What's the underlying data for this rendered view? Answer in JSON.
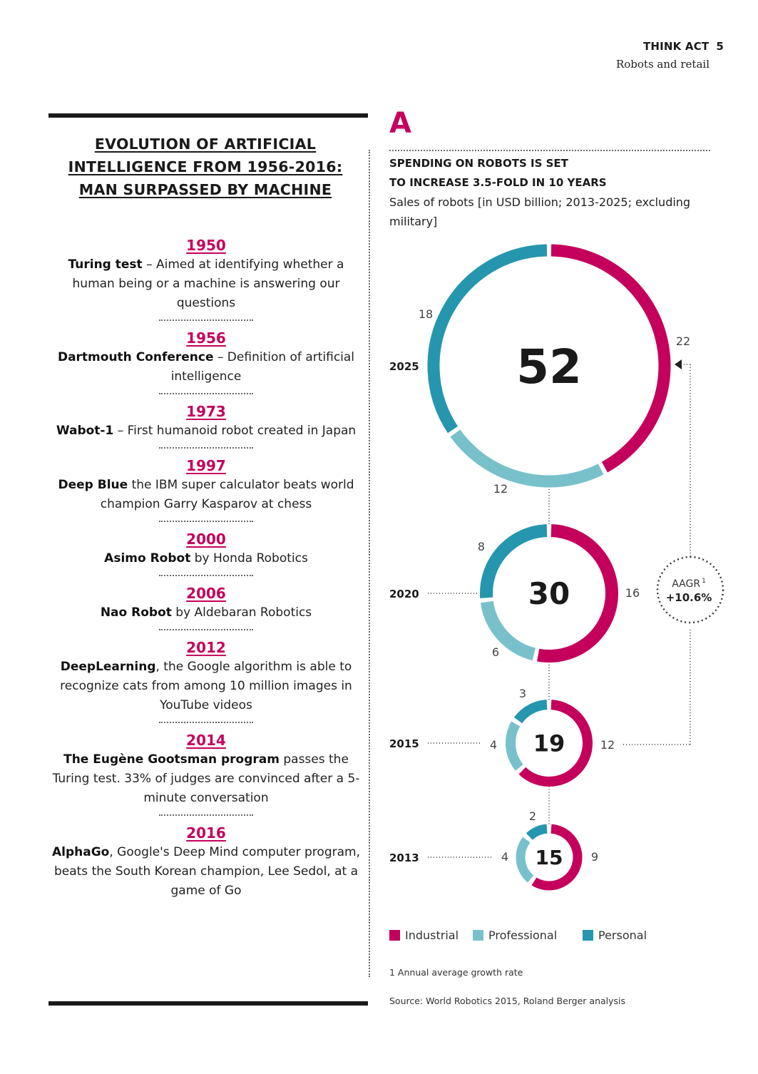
{
  "header": {
    "brand": "THINK ACT",
    "page_number": "5",
    "subtitle": "Robots and retail"
  },
  "left": {
    "title_lines": [
      "EVOLUTION OF ARTIFICIAL",
      "INTELLIGENCE FROM 1956-2016:",
      "MAN SURPASSED BY MACHINE"
    ],
    "timeline": [
      {
        "year": "1950",
        "name": "Turing test",
        "rest": " – Aimed at identifying whether a human being or a machine is answering our questions"
      },
      {
        "year": "1956",
        "name": "Dartmouth Conference",
        "rest": " – Definition of artificial intelligence"
      },
      {
        "year": "1973",
        "name": "Wabot-1",
        "rest": " – First humanoid robot created in Japan"
      },
      {
        "year": "1997",
        "name": "Deep Blue",
        "rest": " the IBM super calculator beats world champion Garry Kasparov at chess"
      },
      {
        "year": "2000",
        "name": "Asimo Robot",
        "rest": " by Honda Robotics"
      },
      {
        "year": "2006",
        "name": "Nao Robot",
        "rest": " by Aldebaran Robotics"
      },
      {
        "year": "2012",
        "name": "DeepLearning",
        "rest": ", the Google algorithm is able to recognize cats from among 10 million images in YouTube videos"
      },
      {
        "year": "2014",
        "name": "The Eugène Gootsman program",
        "rest": " passes the Turing test. 33% of judges are convinced after a 5-minute conversation"
      },
      {
        "year": "2016",
        "name": "AlphaGo",
        "rest": ", Google's Deep Mind computer program, beats the South Korean champion, Lee Sedol, at a game of Go"
      }
    ]
  },
  "chart": {
    "letter": "A",
    "title_lines": [
      "SPENDING ON ROBOTS IS SET",
      "TO INCREASE 3.5-FOLD IN 10 YEARS"
    ],
    "subtitle": "Sales of robots [in USD billion; 2013-2025; excluding military]",
    "aagr_label": "AAGR",
    "aagr_sup": "1",
    "aagr_value": "+10.6%",
    "footnote": "1  Annual average growth rate",
    "source": "Source: World Robotics 2015, Roland Berger analysis"
  },
  "chart_data": {
    "type": "pie",
    "unit": "USD billion",
    "categories": [
      "Industrial",
      "Professional",
      "Personal"
    ],
    "colors": {
      "Industrial": "#c4005c",
      "Professional": "#78c1cb",
      "Personal": "#2596ad"
    },
    "years": [
      {
        "year": "2013",
        "total": 15,
        "values": {
          "Industrial": 9,
          "Professional": 4,
          "Personal": 2
        }
      },
      {
        "year": "2015",
        "total": 19,
        "values": {
          "Industrial": 12,
          "Professional": 4,
          "Personal": 3
        }
      },
      {
        "year": "2020",
        "total": 30,
        "values": {
          "Industrial": 16,
          "Professional": 6,
          "Personal": 8
        }
      },
      {
        "year": "2025",
        "total": 52,
        "values": {
          "Industrial": 22,
          "Professional": 12,
          "Personal": 18
        }
      }
    ],
    "annotation": "AAGR +10.6%",
    "legend": "bottom"
  }
}
